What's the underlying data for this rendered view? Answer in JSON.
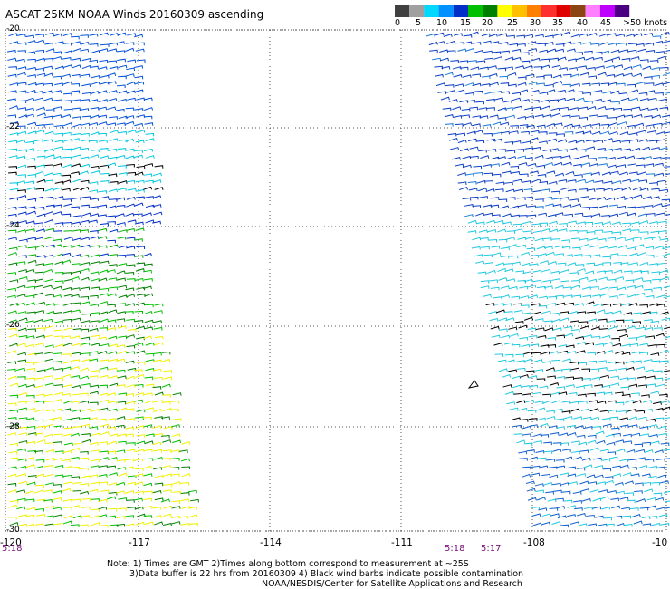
{
  "title": "ASCAT 25KM NOAA Winds 20160309 ascending",
  "colorbar": {
    "colors": [
      "#404040",
      "#a0a0a0",
      "#00d8ff",
      "#0090ff",
      "#0030c8",
      "#00c000",
      "#008000",
      "#ffff00",
      "#ffc000",
      "#ff8000",
      "#ff3030",
      "#e00000",
      "#8b4513",
      "#ff80ff",
      "#c000ff",
      "#4b0082"
    ],
    "labels": [
      "0",
      "5",
      "10",
      "15",
      "20",
      "25",
      "30",
      "35",
      "40",
      "45",
      ">50 knots"
    ]
  },
  "lat_labels": [
    "-20",
    "-22",
    "-24",
    "-26",
    "-28",
    "-30"
  ],
  "lon_labels": [
    "-120",
    "-117",
    "-114",
    "-111",
    "-108",
    "-10"
  ],
  "times": {
    "left": "5:18",
    "center_a": "5:18",
    "center_b": "5:17"
  },
  "footer": {
    "line1": "Note: 1) Times are GMT 2)Times along bottom correspond to measurement at ~25S",
    "line2": "3)Data buffer is 22 hrs from 20160309 4) Black wind barbs indicate possible contamination",
    "line3": "NOAA/NESDIS/Center for Satellite Applications and Research"
  },
  "colors": {
    "grid": "#555555",
    "time_text": "#7a0f7a"
  }
}
